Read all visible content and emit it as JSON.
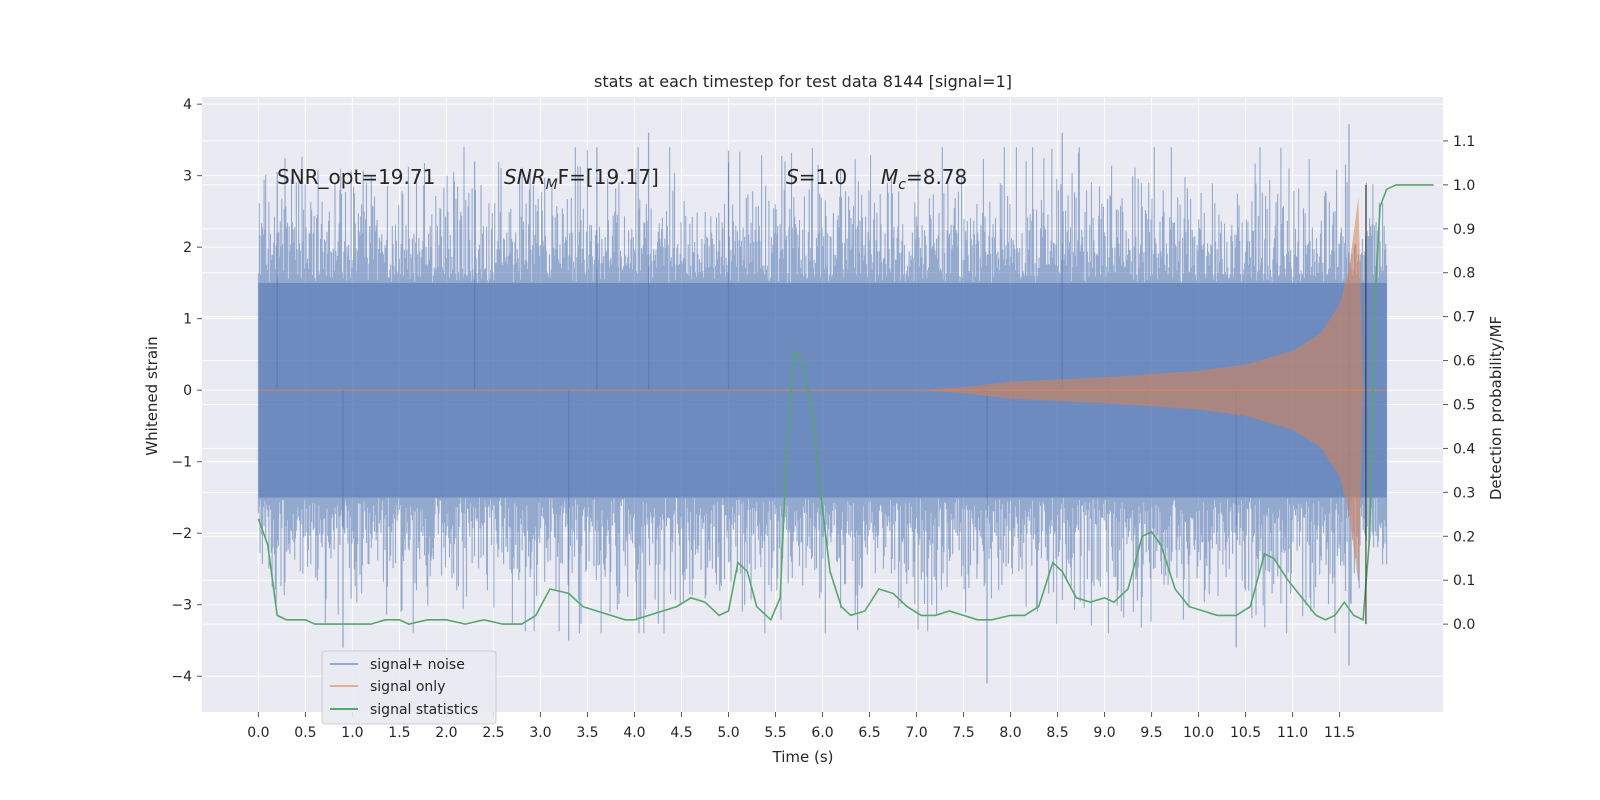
{
  "chart_data": {
    "type": "line",
    "title": "stats at each timestep for test data 8144 [signal=1]",
    "xlabel": "Time (s)",
    "ylabel": "Whitened strain",
    "ylabel_right": "Detection probability/MF",
    "xlim": [
      -0.6,
      12.6
    ],
    "ylim": [
      -4.5,
      4.1
    ],
    "ylim_right": [
      -0.2,
      1.2
    ],
    "xticks": [
      0.0,
      0.5,
      1.0,
      1.5,
      2.0,
      2.5,
      3.0,
      3.5,
      4.0,
      4.5,
      5.0,
      5.5,
      6.0,
      6.5,
      7.0,
      7.5,
      8.0,
      8.5,
      9.0,
      9.5,
      10.0,
      10.5,
      11.0,
      11.5
    ],
    "xtick_labels": [
      "0.0",
      "0.5",
      "1.0",
      "1.5",
      "2.0",
      "2.5",
      "3.0",
      "3.5",
      "4.0",
      "4.5",
      "5.0",
      "5.5",
      "6.0",
      "6.5",
      "7.0",
      "7.5",
      "8.0",
      "8.5",
      "9.0",
      "9.5",
      "10.0",
      "10.5",
      "11.0",
      "11.5"
    ],
    "yticks": [
      4,
      3,
      2,
      1,
      0,
      -1,
      -2,
      -3,
      -4
    ],
    "ytick_labels": [
      "4",
      "3",
      "2",
      "1",
      "0",
      "−1",
      "−2",
      "−3",
      "−4"
    ],
    "yticks_right": [
      1.1,
      1.0,
      0.9,
      0.8,
      0.7,
      0.6,
      0.5,
      0.4,
      0.3,
      0.2,
      0.1,
      0.0
    ],
    "ytick_labels_right": [
      "1.1",
      "1.0",
      "0.9",
      "0.8",
      "0.7",
      "0.6",
      "0.5",
      "0.4",
      "0.3",
      "0.2",
      "0.1",
      "0.0"
    ],
    "grid": true,
    "legend_position": "bottom-left",
    "background": "#eaeaf2",
    "annotations": {
      "snr_opt": "SNR_opt=19.71",
      "snr_mf_base": "SNR",
      "snr_mf_sub": "M",
      "snr_mf_rest": "F=[19.17]",
      "s_sym": "S",
      "s_val": "=1.0",
      "mc_sym": "M",
      "mc_sub": "c",
      "mc_val": "=8.78"
    },
    "series": [
      {
        "name": "signal+ noise",
        "color": "#4c72b0",
        "description_of_values": "whitened strain noise, roughly ±2.5 with peaks to ±3.7, from t=0 to t≈12",
        "t_range": [
          0.0,
          12.0
        ],
        "amplitude_typical": 2.3,
        "notable_peaks": [
          {
            "x": 0.2,
            "y": 3.05
          },
          {
            "x": 2.3,
            "y": 3.2
          },
          {
            "x": 3.6,
            "y": 3.4
          },
          {
            "x": 4.15,
            "y": 3.6
          },
          {
            "x": 5.0,
            "y": 3.35
          },
          {
            "x": 8.55,
            "y": 3.6
          },
          {
            "x": 11.6,
            "y": 3.72
          },
          {
            "x": 0.9,
            "y": -3.6
          },
          {
            "x": 3.3,
            "y": -3.5
          },
          {
            "x": 7.75,
            "y": -4.1
          },
          {
            "x": 10.4,
            "y": -3.6
          },
          {
            "x": 11.6,
            "y": -3.85
          }
        ]
      },
      {
        "name": "signal only",
        "color": "#dd8452",
        "description_of_values": "inspiral chirp envelope, near zero until ~7 s, growing to ±2.7 near 11.7 s then ending",
        "envelope": [
          {
            "x": 0.0,
            "y": 0.0
          },
          {
            "x": 7.0,
            "y": 0.0
          },
          {
            "x": 7.5,
            "y": 0.04
          },
          {
            "x": 8.0,
            "y": 0.12
          },
          {
            "x": 9.0,
            "y": 0.18
          },
          {
            "x": 10.0,
            "y": 0.27
          },
          {
            "x": 10.5,
            "y": 0.36
          },
          {
            "x": 11.0,
            "y": 0.55
          },
          {
            "x": 11.3,
            "y": 0.8
          },
          {
            "x": 11.5,
            "y": 1.2
          },
          {
            "x": 11.6,
            "y": 1.7
          },
          {
            "x": 11.7,
            "y": 2.7
          },
          {
            "x": 11.75,
            "y": 0.0
          }
        ]
      },
      {
        "name": "signal statistics",
        "color": "#55a868",
        "axis": "right",
        "points": [
          [
            0.0,
            0.24
          ],
          [
            0.1,
            0.18
          ],
          [
            0.2,
            0.02
          ],
          [
            0.3,
            0.01
          ],
          [
            0.5,
            0.01
          ],
          [
            0.6,
            0.0
          ],
          [
            0.8,
            0.0
          ],
          [
            1.0,
            0.0
          ],
          [
            1.2,
            0.0
          ],
          [
            1.35,
            0.01
          ],
          [
            1.5,
            0.01
          ],
          [
            1.6,
            0.0
          ],
          [
            1.8,
            0.01
          ],
          [
            2.0,
            0.01
          ],
          [
            2.2,
            0.0
          ],
          [
            2.4,
            0.01
          ],
          [
            2.6,
            0.0
          ],
          [
            2.8,
            0.0
          ],
          [
            2.95,
            0.02
          ],
          [
            3.1,
            0.08
          ],
          [
            3.3,
            0.07
          ],
          [
            3.45,
            0.04
          ],
          [
            3.6,
            0.03
          ],
          [
            3.75,
            0.02
          ],
          [
            3.9,
            0.01
          ],
          [
            4.0,
            0.01
          ],
          [
            4.15,
            0.02
          ],
          [
            4.3,
            0.03
          ],
          [
            4.45,
            0.04
          ],
          [
            4.6,
            0.06
          ],
          [
            4.75,
            0.05
          ],
          [
            4.9,
            0.02
          ],
          [
            5.0,
            0.03
          ],
          [
            5.1,
            0.14
          ],
          [
            5.2,
            0.12
          ],
          [
            5.3,
            0.04
          ],
          [
            5.45,
            0.01
          ],
          [
            5.55,
            0.06
          ],
          [
            5.62,
            0.4
          ],
          [
            5.7,
            0.62
          ],
          [
            5.78,
            0.6
          ],
          [
            5.88,
            0.5
          ],
          [
            5.98,
            0.3
          ],
          [
            6.08,
            0.12
          ],
          [
            6.2,
            0.04
          ],
          [
            6.3,
            0.02
          ],
          [
            6.45,
            0.03
          ],
          [
            6.6,
            0.08
          ],
          [
            6.75,
            0.07
          ],
          [
            6.9,
            0.04
          ],
          [
            7.05,
            0.02
          ],
          [
            7.2,
            0.02
          ],
          [
            7.35,
            0.03
          ],
          [
            7.5,
            0.02
          ],
          [
            7.65,
            0.01
          ],
          [
            7.8,
            0.01
          ],
          [
            8.0,
            0.02
          ],
          [
            8.15,
            0.02
          ],
          [
            8.3,
            0.04
          ],
          [
            8.45,
            0.14
          ],
          [
            8.55,
            0.12
          ],
          [
            8.7,
            0.06
          ],
          [
            8.85,
            0.05
          ],
          [
            9.0,
            0.06
          ],
          [
            9.1,
            0.05
          ],
          [
            9.25,
            0.08
          ],
          [
            9.4,
            0.2
          ],
          [
            9.5,
            0.21
          ],
          [
            9.6,
            0.18
          ],
          [
            9.75,
            0.08
          ],
          [
            9.9,
            0.04
          ],
          [
            10.05,
            0.03
          ],
          [
            10.2,
            0.02
          ],
          [
            10.4,
            0.02
          ],
          [
            10.55,
            0.04
          ],
          [
            10.7,
            0.16
          ],
          [
            10.8,
            0.15
          ],
          [
            10.95,
            0.1
          ],
          [
            11.1,
            0.06
          ],
          [
            11.25,
            0.02
          ],
          [
            11.35,
            0.01
          ],
          [
            11.45,
            0.02
          ],
          [
            11.55,
            0.05
          ],
          [
            11.65,
            0.02
          ],
          [
            11.75,
            0.01
          ],
          [
            11.82,
            0.2
          ],
          [
            11.88,
            0.75
          ],
          [
            11.93,
            0.95
          ],
          [
            12.0,
            0.99
          ],
          [
            12.1,
            1.0
          ],
          [
            12.5,
            1.0
          ]
        ]
      }
    ]
  }
}
